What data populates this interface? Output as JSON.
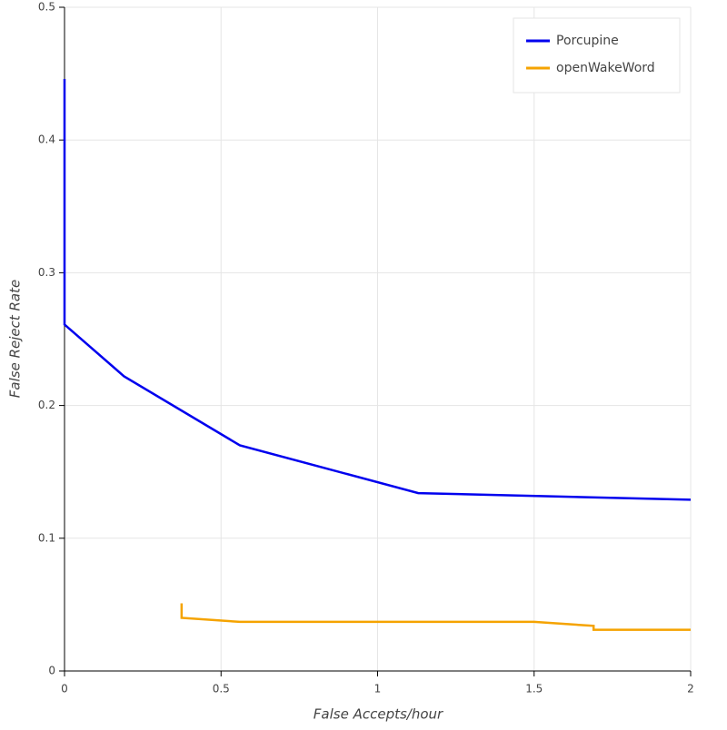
{
  "chart_data": {
    "type": "line",
    "x_label": "False Accepts/hour",
    "y_label": "False Reject Rate",
    "xlim": [
      0,
      2
    ],
    "xticks": [
      0,
      0.5,
      1,
      1.5,
      2
    ],
    "ylim": [
      0,
      0.5
    ],
    "yticks": [
      0,
      0.1,
      0.2,
      0.3,
      0.4,
      0.5
    ],
    "grid": true,
    "legend": "top-right",
    "series": [
      {
        "name": "Porcupine",
        "color": "#0000ee",
        "x": [
          0,
          0,
          0.19,
          0.56,
          1.13,
          2
        ],
        "values": [
          0.446,
          0.261,
          0.222,
          0.17,
          0.134,
          0.129
        ]
      },
      {
        "name": "openWakeWord",
        "color": "#f5a300",
        "x": [
          0.374,
          0.374,
          0.56,
          1.5,
          1.69,
          1.69,
          2
        ],
        "values": [
          0.051,
          0.04,
          0.037,
          0.037,
          0.034,
          0.031,
          0.031
        ]
      }
    ]
  }
}
